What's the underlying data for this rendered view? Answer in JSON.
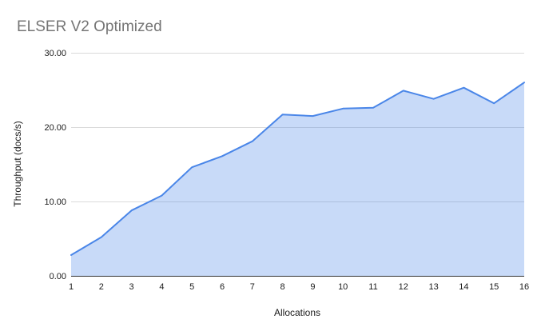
{
  "title": "ELSER V2 Optimized",
  "chart_data": {
    "type": "area",
    "title": "ELSER V2 Optimized",
    "xlabel": "Allocations",
    "ylabel": "Throughput (docs/s)",
    "x": [
      1,
      2,
      3,
      4,
      5,
      6,
      7,
      8,
      9,
      10,
      11,
      12,
      13,
      14,
      15,
      16
    ],
    "xtick_labels": [
      "1",
      "2",
      "3",
      "4",
      "5",
      "6",
      "7",
      "8",
      "9",
      "10",
      "11",
      "12",
      "13",
      "14",
      "15",
      "16"
    ],
    "series": [
      {
        "name": "Throughput (docs/s)",
        "values": [
          2.8,
          5.2,
          8.8,
          10.8,
          14.6,
          16.1,
          18.1,
          21.7,
          21.5,
          22.5,
          22.6,
          24.9,
          23.8,
          25.3,
          23.2,
          26.0
        ]
      }
    ],
    "ylim": [
      0,
      30
    ],
    "yticks": [
      0,
      10,
      20,
      30
    ],
    "ytick_labels": [
      "0.00",
      "10.00",
      "20.00",
      "30.00"
    ],
    "grid": true,
    "legend_position": "none",
    "colors": {
      "line": "#4a86e8",
      "fill": "#4a86e8",
      "fill_opacity": 0.3,
      "gridline": "#dadada",
      "axis_line": "#333333",
      "title_text": "#757575",
      "tick_text": "#1a1a1a",
      "background": "#ffffff"
    }
  }
}
